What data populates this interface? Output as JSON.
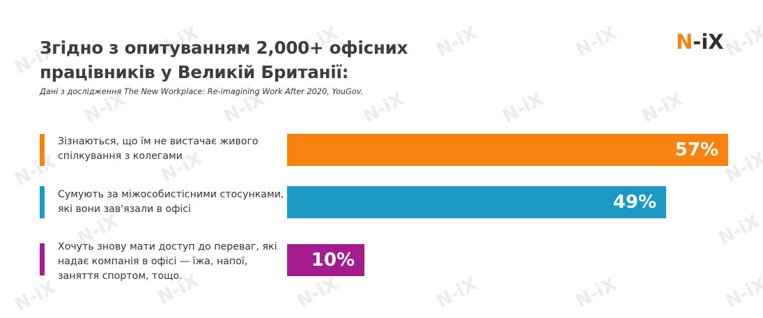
{
  "title": "Згідно з опитуванням 2,000+ офісних працівників у Великій Британії:",
  "subtitle": "Дані з дослідження The New Workplace: Re-imagining Work After 2020, YouGov.",
  "logo": {
    "n": "N",
    "ix": "-iX"
  },
  "watermark_text": "N-iX",
  "colors": {
    "orange": "#f7820f",
    "blue": "#1a9ac4",
    "purple": "#a31d8f"
  },
  "chart_data": {
    "type": "bar",
    "orientation": "horizontal",
    "title": "Згідно з опитуванням 2,000+ офісних працівників у Великій Британії:",
    "categories": [
      "Зізнаються, що їм не вистачає живого спілкування з колегами",
      "Сумують за міжособистісними стосунками, які вони зав'язали в офісі",
      "Хочуть знову мати доступ до переваг, які надає компанія в офісі — їжа, напої, заняття спортом, тощо."
    ],
    "values": [
      57,
      49,
      10
    ],
    "value_labels": [
      "57%",
      "49%",
      "10%"
    ],
    "colors": [
      "#f7820f",
      "#1a9ac4",
      "#a31d8f"
    ],
    "unit": "%",
    "xlim": [
      0,
      57
    ]
  }
}
